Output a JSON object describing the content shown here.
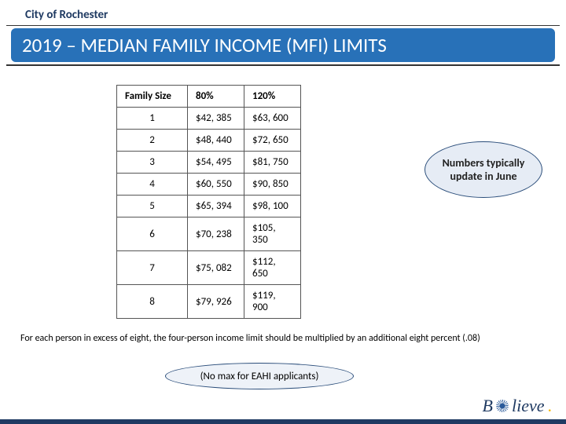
{
  "header": {
    "city": "City of Rochester"
  },
  "title": "2019 – MEDIAN FAMILY INCOME (MFI) LIMITS",
  "table": {
    "columns": [
      "Family Size",
      "80%",
      "120%"
    ],
    "rows": [
      [
        "1",
        "$42, 385",
        "$63, 600"
      ],
      [
        "2",
        "$48, 440",
        "$72, 650"
      ],
      [
        "3",
        "$54, 495",
        "$81, 750"
      ],
      [
        "4",
        "$60, 550",
        "$90, 850"
      ],
      [
        "5",
        "$65, 394",
        "$98, 100"
      ],
      [
        "6",
        "$70, 238",
        "$105, 350"
      ],
      [
        "7",
        "$75, 082",
        "$112, 650"
      ],
      [
        "8",
        "$79, 926",
        "$119, 900"
      ]
    ]
  },
  "callout": "Numbers typically update in June",
  "footnote": "For each person in excess of eight, the four-person income limit should be multiplied by an additional eight percent (.08)",
  "bubble2": "(No max for EAHI applicants)",
  "logo": {
    "text_left": "B",
    "text_right": "lieve",
    "dot": "."
  },
  "colors": {
    "title_bg": "#2871b8",
    "title_text": "#ffffff",
    "header_text": "#1f3a62",
    "border": "#555555",
    "callout_bg": "#e6ecf5",
    "callout_border": "#2a4d7a",
    "footer_bar": "#1f3a62",
    "logo_dot": "#f5b800"
  }
}
